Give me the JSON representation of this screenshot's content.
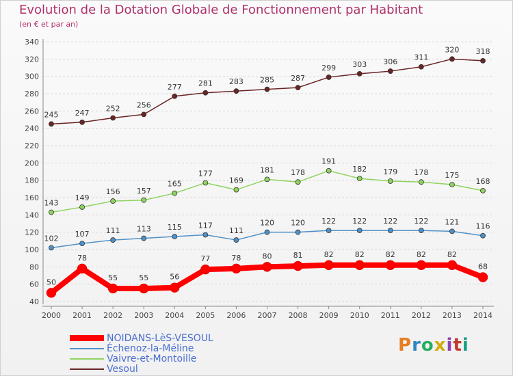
{
  "chart_data": {
    "type": "line",
    "title": "Evolution de la Dotation Globale de Fonctionnement par Habitant",
    "subtitle": "(en € et par an)",
    "x": [
      "2000",
      "2001",
      "2002",
      "2003",
      "2004",
      "2005",
      "2006",
      "2007",
      "2008",
      "2009",
      "2010",
      "2011",
      "2012",
      "2013",
      "2014"
    ],
    "ylim": [
      40,
      340
    ],
    "yticks": [
      40,
      60,
      80,
      100,
      120,
      140,
      160,
      180,
      200,
      220,
      240,
      260,
      280,
      300,
      320,
      340
    ],
    "grid": true,
    "legend_position": "bottom-left",
    "series": [
      {
        "name": "NOIDANS-LèS-VESOUL",
        "color": "#ff0000",
        "values": [
          50,
          78,
          55,
          55,
          56,
          77,
          78,
          80,
          81,
          82,
          82,
          82,
          82,
          82,
          68
        ]
      },
      {
        "name": "Échenoz-la-Méline",
        "color": "#4e90c7",
        "values": [
          102,
          107,
          111,
          113,
          115,
          117,
          111,
          120,
          120,
          122,
          122,
          122,
          122,
          121,
          116
        ]
      },
      {
        "name": "Vaivre-et-Montoille",
        "color": "#8fd35f",
        "values": [
          143,
          149,
          156,
          157,
          165,
          177,
          169,
          181,
          178,
          191,
          182,
          179,
          178,
          175,
          168
        ]
      },
      {
        "name": "Vesoul",
        "color": "#6b2424",
        "values": [
          245,
          247,
          252,
          256,
          277,
          281,
          283,
          285,
          287,
          299,
          303,
          306,
          311,
          320,
          318
        ]
      }
    ]
  },
  "logo": [
    "P",
    "r",
    "o",
    "x",
    "i",
    "t",
    "i"
  ]
}
